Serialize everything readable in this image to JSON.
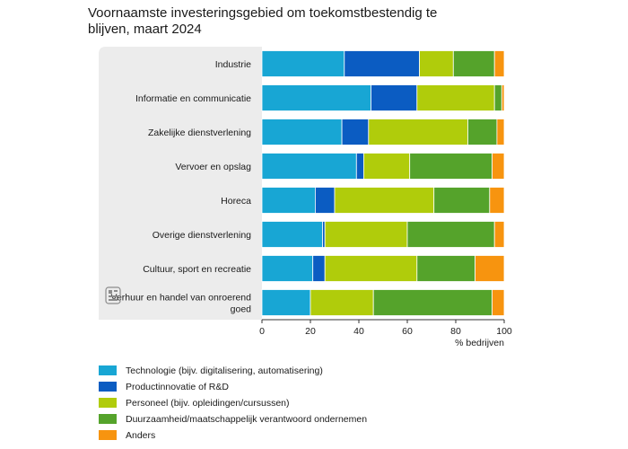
{
  "chart_data": {
    "type": "bar",
    "orientation": "horizontal",
    "stacked": true,
    "title": "Voornaamste investeringsgebied om toekomstbestendig te blijven, maart 2024",
    "xlabel": "% bedrijven",
    "xlim": [
      0,
      100
    ],
    "xticks": [
      0,
      20,
      40,
      60,
      80,
      100
    ],
    "grid": false,
    "legend_position": "bottom",
    "categories": [
      [
        "Industrie"
      ],
      [
        "Informatie en communicatie"
      ],
      [
        "Zakelijke dienstverlening"
      ],
      [
        "Vervoer en opslag"
      ],
      [
        "Horeca"
      ],
      [
        "Overige dienstverlening"
      ],
      [
        "Cultuur, sport en recreatie"
      ],
      [
        "Verhuur en handel van onroerend",
        "goed"
      ]
    ],
    "series": [
      {
        "name": "Technologie (bijv. digitalisering, automatisering)",
        "color": "#18a6d4",
        "values": [
          34,
          45,
          33,
          39,
          22,
          25,
          21,
          20
        ]
      },
      {
        "name": "Productinnovatie of R&D",
        "color": "#0b5cc2",
        "values": [
          31,
          19,
          11,
          3,
          8,
          1,
          5,
          0
        ]
      },
      {
        "name": "Personeel (bijv. opleidingen/cursussen)",
        "color": "#b0cc0b",
        "values": [
          14,
          32,
          41,
          19,
          41,
          34,
          38,
          26
        ]
      },
      {
        "name": "Duurzaamheid/maatschappelijk verantwoord ondernemen",
        "color": "#55a32b",
        "values": [
          17,
          3,
          12,
          34,
          23,
          36,
          24,
          49
        ]
      },
      {
        "name": "Anders",
        "color": "#f7940f",
        "values": [
          4,
          1,
          3,
          5,
          6,
          4,
          12,
          5
        ]
      }
    ],
    "logo_icon": "cbs-logo-icon"
  }
}
